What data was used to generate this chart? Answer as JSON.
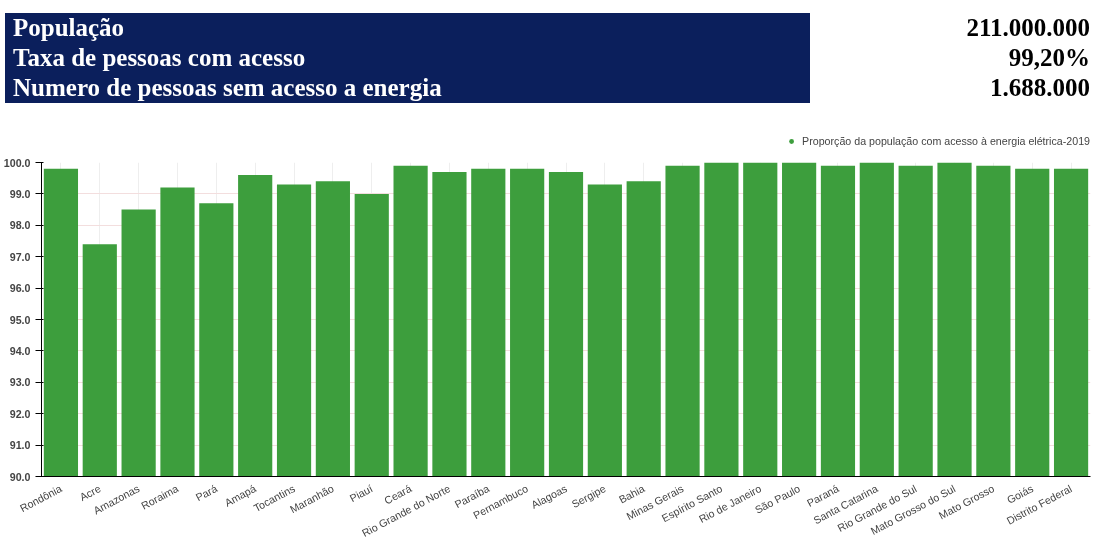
{
  "chart_data": {
    "type": "bar",
    "annotations": [
      "População",
      "211.000.000",
      "Taxa de pessoas com acesso",
      "99,20%",
      "Numero de pessoas sem acesso a energia",
      "1.688.000"
    ],
    "categories": [
      "Rondônia",
      "Acre",
      "Amazonas",
      "Roraima",
      "Pará",
      "Amapá",
      "Tocantins",
      "Maranhão",
      "Piauí",
      "Ceará",
      "Rio Grande do Norte",
      "Paraíba",
      "Pernambuco",
      "Alagoas",
      "Sergipe",
      "Bahia",
      "Minas Gerais",
      "Espírito Santo",
      "Rio de Janeiro",
      "São Paulo",
      "Paraná",
      "Santa Catarina",
      "Rio Grande do Sul",
      "Mato Grosso do Sul",
      "Mato Grosso",
      "Goiás",
      "Distrito Federal"
    ],
    "series": [
      {
        "name": "Proporção da população com acesso à energia elétrica-2019",
        "color": "#3d9e3d",
        "values": [
          99.8,
          97.4,
          98.5,
          99.2,
          98.7,
          99.6,
          99.3,
          99.4,
          99.0,
          99.9,
          99.7,
          99.8,
          99.8,
          99.7,
          99.3,
          99.4,
          99.9,
          100.0,
          100.0,
          100.0,
          99.9,
          100.0,
          99.9,
          100.0,
          99.9,
          99.8,
          99.8
        ]
      }
    ],
    "ylim": [
      90,
      100
    ],
    "yticks": [
      {
        "value": 90,
        "label": "90.0"
      },
      {
        "value": 91,
        "label": "91.0"
      },
      {
        "value": 92,
        "label": "92.0"
      },
      {
        "value": 93,
        "label": "93.0"
      },
      {
        "value": 94,
        "label": "94.0"
      },
      {
        "value": 95,
        "label": "95.0"
      },
      {
        "value": 96,
        "label": "96.0"
      },
      {
        "value": 97,
        "label": "97.0"
      },
      {
        "value": 98,
        "label": "98.0"
      },
      {
        "value": 99,
        "label": "99.0"
      },
      {
        "value": 100,
        "label": "100.0"
      }
    ],
    "grid": true,
    "legend": "top right"
  }
}
